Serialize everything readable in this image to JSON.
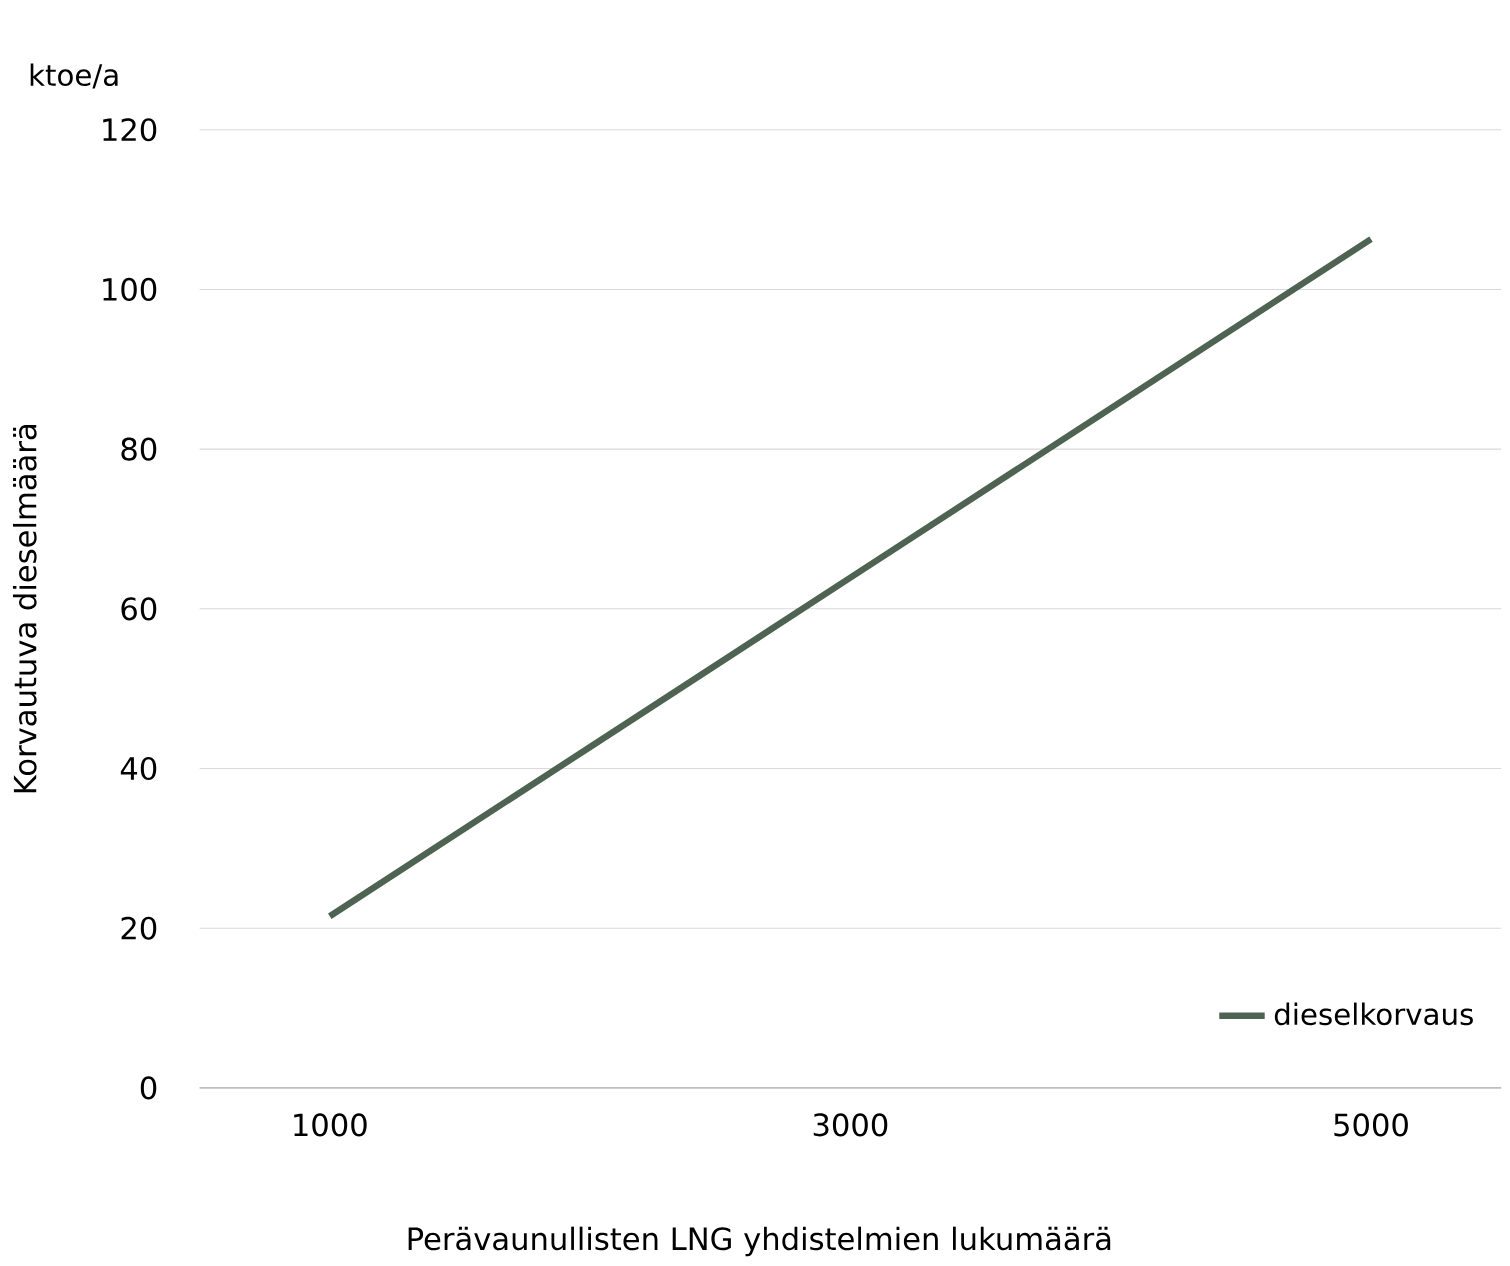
{
  "chart_data": {
    "type": "line",
    "xlabel": "Perävaunullisten LNG yhdistelmien lukumäärä",
    "ylabel": "Korvautuva dieselmäärä",
    "annotations": [
      "ktoe/a"
    ],
    "categories": [
      "1000",
      null,
      "3000",
      null,
      "5000"
    ],
    "series": [
      {
        "name": "dieselkorvaus",
        "color": "#4f6352",
        "values": [
          21.5,
          42.7,
          63.9,
          85.1,
          106.3
        ]
      }
    ],
    "ylim": [
      0,
      120
    ],
    "yticks": [
      0,
      20,
      40,
      60,
      80,
      100,
      120
    ],
    "grid": "y",
    "legend": "bottom right",
    "marker": "none",
    "line_style": "solid"
  }
}
